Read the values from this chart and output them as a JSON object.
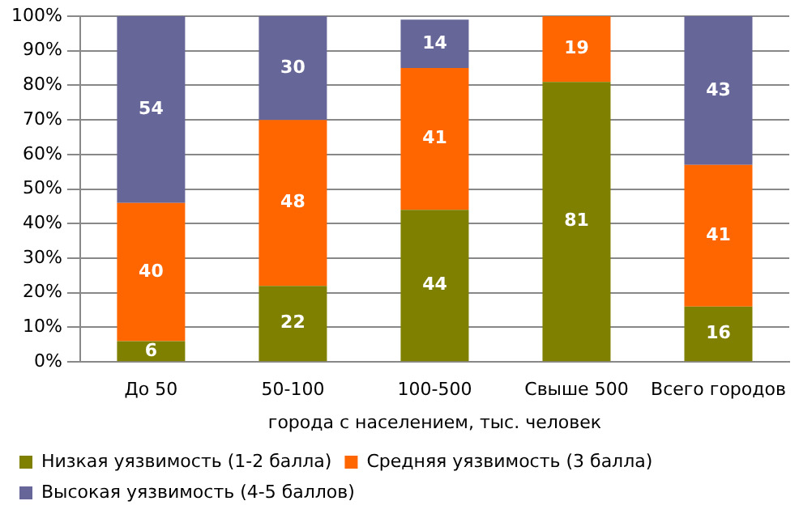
{
  "chart_data": {
    "type": "bar",
    "stacked": true,
    "xlabel": "города с населением, тыс. человек",
    "categories": [
      "До 50",
      "50-100",
      "100-500",
      "Свыше 500",
      "Всего городов"
    ],
    "series": [
      {
        "name": "Низкая уязвимость (1-2 балла)",
        "color": "#808000",
        "values": [
          6,
          22,
          44,
          81,
          16
        ]
      },
      {
        "name": "Средняя уязвимость (3 балла)",
        "color": "#ff6600",
        "values": [
          40,
          48,
          41,
          19,
          41
        ]
      },
      {
        "name": "Высокая уязвимость (4-5 баллов)",
        "color": "#666699",
        "values": [
          54,
          30,
          14,
          null,
          43
        ]
      }
    ],
    "ylim": [
      0,
      100
    ],
    "yticks": [
      {
        "value": 0,
        "label": "0%"
      },
      {
        "value": 10,
        "label": "10%"
      },
      {
        "value": 20,
        "label": "20%"
      },
      {
        "value": 30,
        "label": "30%"
      },
      {
        "value": 40,
        "label": "40%"
      },
      {
        "value": 50,
        "label": "50%"
      },
      {
        "value": 60,
        "label": "60%"
      },
      {
        "value": 70,
        "label": "70%"
      },
      {
        "value": 80,
        "label": "80%"
      },
      {
        "value": 90,
        "label": "90%"
      },
      {
        "value": 100,
        "label": "100%"
      }
    ],
    "grid": "y",
    "legend": "bottom",
    "data_labels": true
  }
}
